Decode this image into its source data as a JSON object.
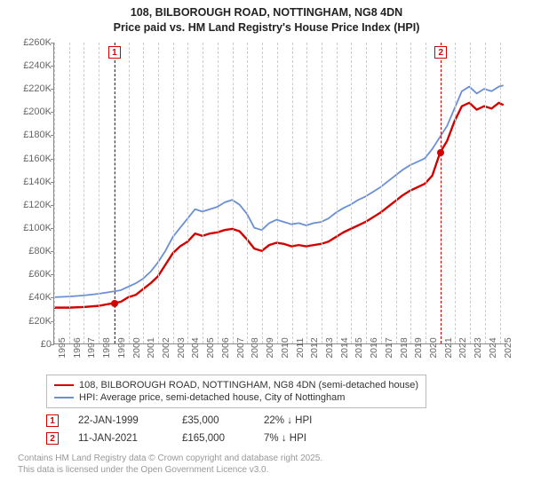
{
  "title": {
    "line1": "108, BILBOROUGH ROAD, NOTTINGHAM, NG8 4DN",
    "line2": "Price paid vs. HM Land Registry's House Price Index (HPI)"
  },
  "chart": {
    "type": "line",
    "background_color": "#ffffff",
    "grid_color": "#cccccc",
    "axis_color": "#888888",
    "tick_label_color": "#666666",
    "tick_fontsize": 11,
    "title_fontsize": 12.5,
    "ylim": [
      0,
      260000
    ],
    "ytick_step": 20000,
    "yticks": [
      {
        "v": 0,
        "label": "£0"
      },
      {
        "v": 20000,
        "label": "£20K"
      },
      {
        "v": 40000,
        "label": "£40K"
      },
      {
        "v": 60000,
        "label": "£60K"
      },
      {
        "v": 80000,
        "label": "£80K"
      },
      {
        "v": 100000,
        "label": "£100K"
      },
      {
        "v": 120000,
        "label": "£120K"
      },
      {
        "v": 140000,
        "label": "£140K"
      },
      {
        "v": 160000,
        "label": "£160K"
      },
      {
        "v": 180000,
        "label": "£180K"
      },
      {
        "v": 200000,
        "label": "£200K"
      },
      {
        "v": 220000,
        "label": "£220K"
      },
      {
        "v": 240000,
        "label": "£240K"
      },
      {
        "v": 260000,
        "label": "£260K"
      }
    ],
    "xlim": [
      1995,
      2025.5
    ],
    "xticks": [
      1995,
      1996,
      1997,
      1998,
      1999,
      2000,
      2001,
      2002,
      2003,
      2004,
      2005,
      2006,
      2007,
      2008,
      2009,
      2010,
      2011,
      2012,
      2013,
      2014,
      2015,
      2016,
      2017,
      2018,
      2019,
      2020,
      2021,
      2022,
      2023,
      2024,
      2025
    ],
    "series": [
      {
        "id": "price_paid",
        "label": "108, BILBOROUGH ROAD, NOTTINGHAM, NG8 4DN (semi-detached house)",
        "color": "#d40000",
        "line_width": 2.4,
        "points": [
          [
            1995.0,
            31000
          ],
          [
            1996.0,
            31000
          ],
          [
            1997.0,
            31500
          ],
          [
            1998.0,
            32500
          ],
          [
            1999.06,
            35000
          ],
          [
            1999.5,
            36000
          ],
          [
            2000.0,
            40000
          ],
          [
            2000.5,
            42000
          ],
          [
            2001.0,
            47000
          ],
          [
            2001.5,
            52000
          ],
          [
            2002.0,
            58000
          ],
          [
            2002.5,
            68000
          ],
          [
            2003.0,
            78000
          ],
          [
            2003.5,
            84000
          ],
          [
            2004.0,
            88000
          ],
          [
            2004.5,
            95000
          ],
          [
            2005.0,
            93000
          ],
          [
            2005.5,
            95000
          ],
          [
            2006.0,
            96000
          ],
          [
            2006.5,
            98000
          ],
          [
            2007.0,
            99000
          ],
          [
            2007.5,
            97000
          ],
          [
            2008.0,
            90000
          ],
          [
            2008.5,
            82000
          ],
          [
            2009.0,
            80000
          ],
          [
            2009.5,
            85000
          ],
          [
            2010.0,
            87000
          ],
          [
            2010.5,
            86000
          ],
          [
            2011.0,
            84000
          ],
          [
            2011.5,
            85000
          ],
          [
            2012.0,
            84000
          ],
          [
            2012.5,
            85000
          ],
          [
            2013.0,
            86000
          ],
          [
            2013.5,
            88000
          ],
          [
            2014.0,
            92000
          ],
          [
            2014.5,
            96000
          ],
          [
            2015.0,
            99000
          ],
          [
            2015.5,
            102000
          ],
          [
            2016.0,
            105000
          ],
          [
            2016.5,
            109000
          ],
          [
            2017.0,
            113000
          ],
          [
            2017.5,
            118000
          ],
          [
            2018.0,
            123000
          ],
          [
            2018.5,
            128000
          ],
          [
            2019.0,
            132000
          ],
          [
            2019.5,
            135000
          ],
          [
            2020.0,
            138000
          ],
          [
            2020.5,
            145000
          ],
          [
            2021.03,
            165000
          ],
          [
            2021.5,
            175000
          ],
          [
            2022.0,
            192000
          ],
          [
            2022.5,
            205000
          ],
          [
            2023.0,
            208000
          ],
          [
            2023.5,
            202000
          ],
          [
            2024.0,
            205000
          ],
          [
            2024.5,
            203000
          ],
          [
            2025.0,
            208000
          ],
          [
            2025.3,
            206000
          ]
        ]
      },
      {
        "id": "hpi",
        "label": "HPI: Average price, semi-detached house, City of Nottingham",
        "color": "#6a8fd4",
        "line_width": 1.8,
        "points": [
          [
            1995.0,
            40000
          ],
          [
            1996.0,
            40500
          ],
          [
            1997.0,
            41500
          ],
          [
            1998.0,
            43000
          ],
          [
            1999.0,
            45000
          ],
          [
            1999.5,
            46000
          ],
          [
            2000.0,
            49000
          ],
          [
            2000.5,
            52000
          ],
          [
            2001.0,
            56000
          ],
          [
            2001.5,
            62000
          ],
          [
            2002.0,
            70000
          ],
          [
            2002.5,
            80000
          ],
          [
            2003.0,
            92000
          ],
          [
            2003.5,
            100000
          ],
          [
            2004.0,
            108000
          ],
          [
            2004.5,
            116000
          ],
          [
            2005.0,
            114000
          ],
          [
            2005.5,
            116000
          ],
          [
            2006.0,
            118000
          ],
          [
            2006.5,
            122000
          ],
          [
            2007.0,
            124000
          ],
          [
            2007.5,
            120000
          ],
          [
            2008.0,
            112000
          ],
          [
            2008.5,
            100000
          ],
          [
            2009.0,
            98000
          ],
          [
            2009.5,
            104000
          ],
          [
            2010.0,
            107000
          ],
          [
            2010.5,
            105000
          ],
          [
            2011.0,
            103000
          ],
          [
            2011.5,
            104000
          ],
          [
            2012.0,
            102000
          ],
          [
            2012.5,
            104000
          ],
          [
            2013.0,
            105000
          ],
          [
            2013.5,
            108000
          ],
          [
            2014.0,
            113000
          ],
          [
            2014.5,
            117000
          ],
          [
            2015.0,
            120000
          ],
          [
            2015.5,
            124000
          ],
          [
            2016.0,
            127000
          ],
          [
            2016.5,
            131000
          ],
          [
            2017.0,
            135000
          ],
          [
            2017.5,
            140000
          ],
          [
            2018.0,
            145000
          ],
          [
            2018.5,
            150000
          ],
          [
            2019.0,
            154000
          ],
          [
            2019.5,
            157000
          ],
          [
            2020.0,
            160000
          ],
          [
            2020.5,
            168000
          ],
          [
            2021.0,
            178000
          ],
          [
            2021.5,
            188000
          ],
          [
            2022.0,
            203000
          ],
          [
            2022.5,
            218000
          ],
          [
            2023.0,
            222000
          ],
          [
            2023.5,
            216000
          ],
          [
            2024.0,
            220000
          ],
          [
            2024.5,
            218000
          ],
          [
            2025.0,
            222000
          ],
          [
            2025.3,
            223000
          ]
        ]
      }
    ],
    "markers": [
      {
        "n": "1",
        "x": 1999.06,
        "y": 35000,
        "color": "#d40000"
      },
      {
        "n": "2",
        "x": 2021.03,
        "y": 165000,
        "color": "#d40000"
      }
    ]
  },
  "legend": {
    "border_color": "#bbbbbb",
    "rows": [
      {
        "color": "#d40000",
        "label": "108, BILBOROUGH ROAD, NOTTINGHAM, NG8 4DN (semi-detached house)"
      },
      {
        "color": "#6a8fd4",
        "label": "HPI: Average price, semi-detached house, City of Nottingham"
      }
    ]
  },
  "events": [
    {
      "n": "1",
      "color": "#d40000",
      "date": "22-JAN-1999",
      "price": "£35,000",
      "diff": "22% ↓ HPI"
    },
    {
      "n": "2",
      "color": "#d40000",
      "date": "11-JAN-2021",
      "price": "£165,000",
      "diff": "7% ↓ HPI"
    }
  ],
  "footer": {
    "line1": "Contains HM Land Registry data © Crown copyright and database right 2025.",
    "line2": "This data is licensed under the Open Government Licence v3.0."
  }
}
